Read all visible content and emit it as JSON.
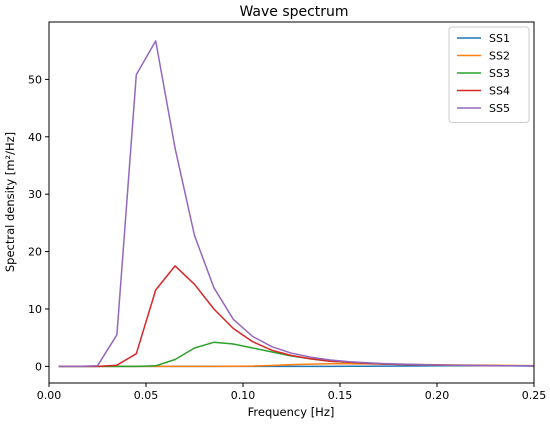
{
  "chart_data": {
    "type": "line",
    "title": "Wave spectrum",
    "xlabel": "Frequency [Hz]",
    "ylabel": "Spectral density [m²/Hz]",
    "xlim": [
      0.0,
      0.25
    ],
    "ylim": [
      -2.9,
      60.0
    ],
    "xticks": [
      0.0,
      0.05,
      0.1,
      0.15,
      0.2,
      0.25
    ],
    "xtick_labels": [
      "0.00",
      "0.05",
      "0.10",
      "0.15",
      "0.20",
      "0.25"
    ],
    "yticks": [
      0,
      10,
      20,
      30,
      40,
      50
    ],
    "ytick_labels": [
      "0",
      "10",
      "20",
      "30",
      "40",
      "50"
    ],
    "grid": false,
    "legend_position": "top-right",
    "x": [
      0.005,
      0.015,
      0.025,
      0.035,
      0.045,
      0.055,
      0.065,
      0.075,
      0.085,
      0.095,
      0.105,
      0.115,
      0.125,
      0.135,
      0.145,
      0.155,
      0.165,
      0.175,
      0.185,
      0.195,
      0.205,
      0.215,
      0.225,
      0.235,
      0.245,
      0.25
    ],
    "series": [
      {
        "name": "SS1",
        "color": "#1f77b4",
        "values": [
          0,
          0,
          0,
          0,
          0,
          0,
          0,
          0,
          0,
          0,
          0,
          0,
          0,
          0,
          0,
          0.01,
          0.02,
          0.04,
          0.06,
          0.08,
          0.09,
          0.09,
          0.09,
          0.08,
          0.07,
          0.07
        ]
      },
      {
        "name": "SS2",
        "color": "#ff7f0e",
        "values": [
          0,
          0,
          0,
          0,
          0,
          0,
          0,
          0,
          0,
          0.01,
          0.05,
          0.15,
          0.3,
          0.4,
          0.45,
          0.45,
          0.42,
          0.38,
          0.34,
          0.3,
          0.26,
          0.22,
          0.19,
          0.16,
          0.14,
          0.13
        ]
      },
      {
        "name": "SS3",
        "color": "#2ca02c",
        "values": [
          0,
          0,
          0,
          0,
          0,
          0.1,
          1.2,
          3.2,
          4.2,
          3.9,
          3.2,
          2.5,
          1.8,
          1.3,
          0.9,
          0.7,
          0.5,
          0.4,
          0.3,
          0.25,
          0.2,
          0.16,
          0.13,
          0.11,
          0.09,
          0.08
        ]
      },
      {
        "name": "SS4",
        "color": "#d62728",
        "values": [
          0,
          0,
          0,
          0.2,
          2.2,
          13.3,
          17.5,
          14.3,
          10.0,
          6.6,
          4.3,
          2.8,
          1.9,
          1.3,
          0.9,
          0.7,
          0.5,
          0.4,
          0.3,
          0.25,
          0.2,
          0.16,
          0.13,
          0.11,
          0.09,
          0.08
        ]
      },
      {
        "name": "SS5",
        "color": "#9467bd",
        "values": [
          0,
          0,
          0.1,
          5.5,
          50.8,
          56.7,
          38.0,
          22.8,
          13.7,
          8.2,
          5.2,
          3.4,
          2.3,
          1.6,
          1.1,
          0.8,
          0.6,
          0.45,
          0.35,
          0.28,
          0.22,
          0.18,
          0.14,
          0.12,
          0.1,
          0.09
        ]
      }
    ]
  }
}
